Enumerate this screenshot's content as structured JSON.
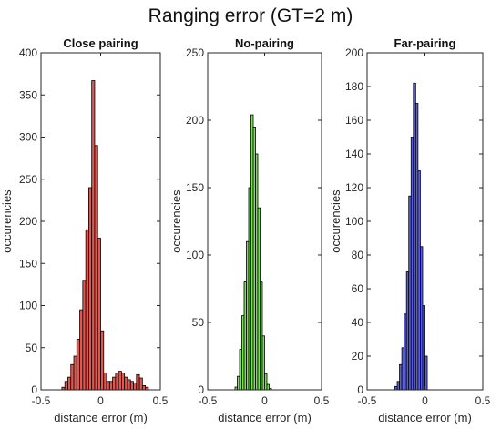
{
  "suptitle": "Ranging error (GT=2 m)",
  "chart_data": [
    {
      "type": "bar",
      "title": "Close pairing",
      "xlabel": "distance error (m)",
      "ylabel": "occurencies",
      "xlim": [
        -0.5,
        0.5
      ],
      "ylim": [
        0,
        400
      ],
      "xticks": [
        -0.5,
        0,
        0.5
      ],
      "xtick_labels": [
        "-0.5",
        "0",
        "0.5"
      ],
      "yticks": [
        0,
        50,
        100,
        150,
        200,
        250,
        300,
        350,
        400
      ],
      "ytick_labels": [
        "0",
        "50",
        "100",
        "150",
        "200",
        "250",
        "300",
        "350",
        "400"
      ],
      "bin_width": 0.025,
      "color": "#e0574f",
      "bin_centers": [
        -0.3125,
        -0.2875,
        -0.2625,
        -0.2375,
        -0.2125,
        -0.1875,
        -0.1625,
        -0.1375,
        -0.1125,
        -0.0875,
        -0.0625,
        -0.0375,
        -0.0125,
        0.0125,
        0.0375,
        0.0625,
        0.0875,
        0.1125,
        0.1375,
        0.1625,
        0.1875,
        0.2125,
        0.2375,
        0.2625,
        0.2875,
        0.3125,
        0.3375,
        0.3625,
        0.3875
      ],
      "values": [
        3,
        10,
        15,
        30,
        40,
        60,
        95,
        130,
        190,
        240,
        367,
        290,
        180,
        70,
        20,
        10,
        10,
        15,
        20,
        22,
        20,
        15,
        12,
        10,
        8,
        18,
        14,
        5,
        3
      ]
    },
    {
      "type": "bar",
      "title": "No-pairing",
      "xlabel": "distance error (m)",
      "ylabel": "occurencies",
      "xlim": [
        -0.5,
        0.5
      ],
      "ylim": [
        0,
        250
      ],
      "xticks": [
        -0.5,
        0,
        0.5
      ],
      "xtick_labels": [
        "-0.5",
        "0",
        "0.5"
      ],
      "yticks": [
        0,
        50,
        100,
        150,
        200,
        250
      ],
      "ytick_labels": [
        "0",
        "50",
        "100",
        "150",
        "200",
        "250"
      ],
      "bin_width": 0.02,
      "color": "#7be057",
      "bin_centers": [
        -0.25,
        -0.23,
        -0.21,
        -0.19,
        -0.17,
        -0.15,
        -0.13,
        -0.11,
        -0.09,
        -0.07,
        -0.05,
        -0.03,
        -0.01,
        0.01,
        0.03,
        0.05
      ],
      "values": [
        2,
        10,
        30,
        55,
        80,
        110,
        150,
        204,
        195,
        175,
        135,
        80,
        40,
        12,
        4,
        1
      ]
    },
    {
      "type": "bar",
      "title": "Far-pairing",
      "xlabel": "distance error (m)",
      "ylabel": "occurencies",
      "xlim": [
        -0.5,
        0.5
      ],
      "ylim": [
        0,
        200
      ],
      "xticks": [
        -0.5,
        0,
        0.5
      ],
      "xtick_labels": [
        "-0.5",
        "0",
        "0.5"
      ],
      "yticks": [
        0,
        20,
        40,
        60,
        80,
        100,
        120,
        140,
        160,
        180,
        200
      ],
      "ytick_labels": [
        "0",
        "20",
        "40",
        "60",
        "80",
        "100",
        "120",
        "140",
        "160",
        "180",
        "200"
      ],
      "bin_width": 0.02,
      "color": "#5a5fe0",
      "bin_centers": [
        -0.25,
        -0.23,
        -0.21,
        -0.19,
        -0.17,
        -0.15,
        -0.13,
        -0.11,
        -0.09,
        -0.07,
        -0.05,
        -0.03,
        -0.01,
        0.01
      ],
      "values": [
        2,
        5,
        15,
        25,
        45,
        70,
        115,
        150,
        182,
        170,
        130,
        85,
        50,
        20
      ]
    }
  ]
}
